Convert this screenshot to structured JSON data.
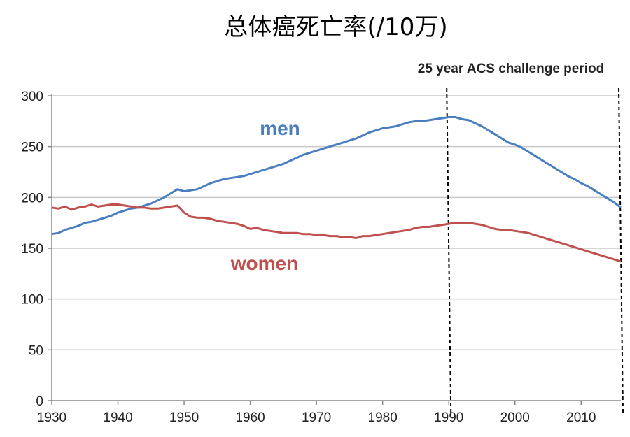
{
  "chart_data": {
    "type": "line",
    "title": "总体癌死亡率(/10万)",
    "annotation": "25 year ACS challenge period",
    "xlim": [
      1930,
      2016
    ],
    "ylim": [
      0,
      300
    ],
    "x_ticks": [
      1930,
      1940,
      1950,
      1960,
      1970,
      1980,
      1990,
      2000,
      2010
    ],
    "y_ticks": [
      0,
      50,
      100,
      150,
      200,
      250,
      300
    ],
    "grid": "horizontal",
    "period_markers": [
      1990,
      2016
    ],
    "series": [
      {
        "name": "men",
        "color": "#4a7ebf",
        "x": [
          1930,
          1931,
          1932,
          1933,
          1934,
          1935,
          1936,
          1937,
          1938,
          1939,
          1940,
          1941,
          1942,
          1943,
          1944,
          1945,
          1946,
          1947,
          1948,
          1949,
          1950,
          1951,
          1952,
          1953,
          1954,
          1955,
          1956,
          1957,
          1958,
          1959,
          1960,
          1961,
          1962,
          1963,
          1964,
          1965,
          1966,
          1967,
          1968,
          1969,
          1970,
          1971,
          1972,
          1973,
          1974,
          1975,
          1976,
          1977,
          1978,
          1979,
          1980,
          1981,
          1982,
          1983,
          1984,
          1985,
          1986,
          1987,
          1988,
          1989,
          1990,
          1991,
          1992,
          1993,
          1994,
          1995,
          1996,
          1997,
          1998,
          1999,
          2000,
          2001,
          2002,
          2003,
          2004,
          2005,
          2006,
          2007,
          2008,
          2009,
          2010,
          2011,
          2012,
          2013,
          2014,
          2015,
          2016
        ],
        "values": [
          164,
          165,
          168,
          170,
          172,
          175,
          176,
          178,
          180,
          182,
          185,
          187,
          189,
          190,
          192,
          194,
          197,
          200,
          204,
          208,
          206,
          207,
          208,
          211,
          214,
          216,
          218,
          219,
          220,
          221,
          223,
          225,
          227,
          229,
          231,
          233,
          236,
          239,
          242,
          244,
          246,
          248,
          250,
          252,
          254,
          256,
          258,
          261,
          264,
          266,
          268,
          269,
          270,
          272,
          274,
          275,
          275,
          276,
          277,
          278,
          279,
          279,
          277,
          276,
          273,
          270,
          266,
          262,
          258,
          254,
          252,
          249,
          245,
          241,
          237,
          233,
          229,
          225,
          221,
          218,
          214,
          211,
          207,
          203,
          199,
          195,
          190
        ]
      },
      {
        "name": "women",
        "color": "#c0504d",
        "x": [
          1930,
          1931,
          1932,
          1933,
          1934,
          1935,
          1936,
          1937,
          1938,
          1939,
          1940,
          1941,
          1942,
          1943,
          1944,
          1945,
          1946,
          1947,
          1948,
          1949,
          1950,
          1951,
          1952,
          1953,
          1954,
          1955,
          1956,
          1957,
          1958,
          1959,
          1960,
          1961,
          1962,
          1963,
          1964,
          1965,
          1966,
          1967,
          1968,
          1969,
          1970,
          1971,
          1972,
          1973,
          1974,
          1975,
          1976,
          1977,
          1978,
          1979,
          1980,
          1981,
          1982,
          1983,
          1984,
          1985,
          1986,
          1987,
          1988,
          1989,
          1990,
          1991,
          1992,
          1993,
          1994,
          1995,
          1996,
          1997,
          1998,
          1999,
          2000,
          2001,
          2002,
          2003,
          2004,
          2005,
          2006,
          2007,
          2008,
          2009,
          2010,
          2011,
          2012,
          2013,
          2014,
          2015,
          2016
        ],
        "values": [
          190,
          189,
          191,
          188,
          190,
          191,
          193,
          191,
          192,
          193,
          193,
          192,
          191,
          190,
          190,
          189,
          189,
          190,
          191,
          192,
          185,
          181,
          180,
          180,
          179,
          177,
          176,
          175,
          174,
          172,
          169,
          170,
          168,
          167,
          166,
          165,
          165,
          165,
          164,
          164,
          163,
          163,
          162,
          162,
          161,
          161,
          160,
          162,
          162,
          163,
          164,
          165,
          166,
          167,
          168,
          170,
          171,
          171,
          172,
          173,
          174,
          175,
          175,
          175,
          174,
          173,
          171,
          169,
          168,
          168,
          167,
          166,
          165,
          163,
          161,
          159,
          157,
          155,
          153,
          151,
          149,
          147,
          145,
          143,
          141,
          139,
          137
        ]
      }
    ]
  }
}
